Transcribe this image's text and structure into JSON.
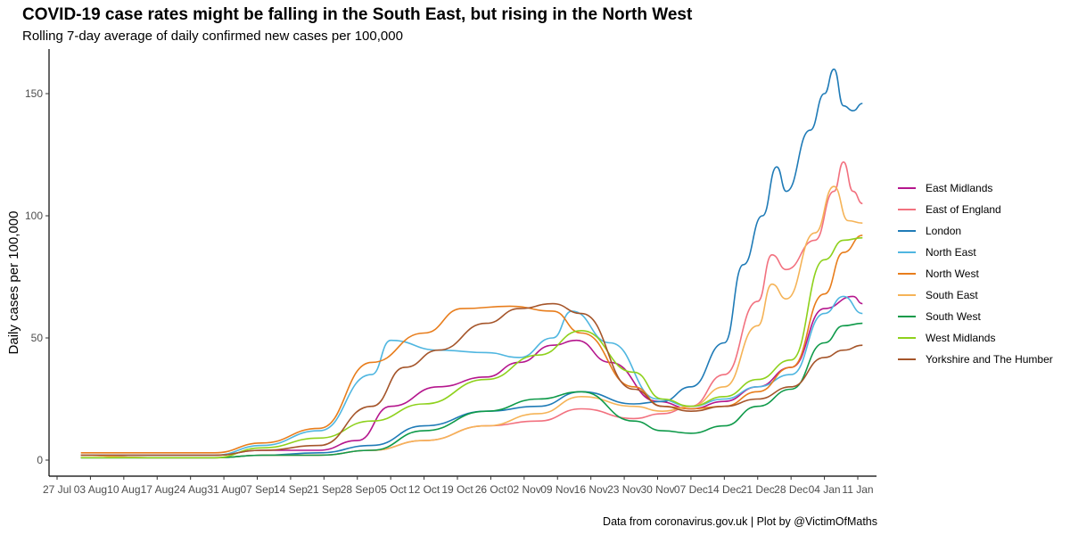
{
  "chart_data": {
    "type": "line",
    "title": "COVID-19 case rates might be falling in the South East, but rising in the North West",
    "subtitle": "Rolling 7-day average of daily confirmed new cases per 100,000",
    "caption": "Data from coronavirus.gov.uk | Plot by @VictimOfMaths",
    "xlabel": "",
    "ylabel": "Daily cases per 100,000",
    "ylim": [
      -8,
      168
    ],
    "yticks": [
      0,
      50,
      100,
      150
    ],
    "xlim": [
      "2020-07-27",
      "2021-01-11"
    ],
    "xticks": [
      {
        "date": "2020-07-27",
        "label": "27 Jul"
      },
      {
        "date": "2020-08-03",
        "label": "03 Aug"
      },
      {
        "date": "2020-08-10",
        "label": "10 Aug"
      },
      {
        "date": "2020-08-17",
        "label": "17 Aug"
      },
      {
        "date": "2020-08-24",
        "label": "24 Aug"
      },
      {
        "date": "2020-08-31",
        "label": "31 Aug"
      },
      {
        "date": "2020-09-07",
        "label": "07 Sep"
      },
      {
        "date": "2020-09-14",
        "label": "14 Sep"
      },
      {
        "date": "2020-09-21",
        "label": "21 Sep"
      },
      {
        "date": "2020-09-28",
        "label": "28 Sep"
      },
      {
        "date": "2020-10-05",
        "label": "05 Oct"
      },
      {
        "date": "2020-10-12",
        "label": "12 Oct"
      },
      {
        "date": "2020-10-19",
        "label": "19 Oct"
      },
      {
        "date": "2020-10-26",
        "label": "26 Oct"
      },
      {
        "date": "2020-11-02",
        "label": "02 Nov"
      },
      {
        "date": "2020-11-09",
        "label": "09 Nov"
      },
      {
        "date": "2020-11-16",
        "label": "16 Nov"
      },
      {
        "date": "2020-11-23",
        "label": "23 Nov"
      },
      {
        "date": "2020-11-30",
        "label": "30 Nov"
      },
      {
        "date": "2020-12-07",
        "label": "07 Dec"
      },
      {
        "date": "2020-12-14",
        "label": "14 Dec"
      },
      {
        "date": "2020-12-21",
        "label": "21 Dec"
      },
      {
        "date": "2020-12-28",
        "label": "28 Dec"
      },
      {
        "date": "2021-01-04",
        "label": "04 Jan"
      },
      {
        "date": "2021-01-11",
        "label": "11 Jan"
      }
    ],
    "grid": false,
    "legend_position": "right",
    "series": [
      {
        "name": "East Midlands",
        "color": "#b5168d",
        "x": [
          "2020-08-01",
          "2020-08-15",
          "2020-08-29",
          "2020-09-08",
          "2020-09-20",
          "2020-09-28",
          "2020-10-05",
          "2020-10-15",
          "2020-10-25",
          "2020-11-01",
          "2020-11-08",
          "2020-11-13",
          "2020-11-20",
          "2020-11-30",
          "2020-12-07",
          "2020-12-14",
          "2020-12-21",
          "2020-12-28",
          "2021-01-04",
          "2021-01-10",
          "2021-01-12"
        ],
        "y": [
          2,
          2,
          2,
          4,
          4,
          8,
          22,
          30,
          34,
          40,
          47,
          49,
          40,
          24,
          21,
          24,
          30,
          38,
          62,
          67,
          64
        ]
      },
      {
        "name": "East of England",
        "color": "#f2717f",
        "x": [
          "2020-08-01",
          "2020-08-15",
          "2020-08-29",
          "2020-09-08",
          "2020-09-20",
          "2020-10-01",
          "2020-10-12",
          "2020-10-25",
          "2020-11-05",
          "2020-11-14",
          "2020-11-25",
          "2020-12-01",
          "2020-12-07",
          "2020-12-14",
          "2020-12-21",
          "2020-12-24",
          "2020-12-27",
          "2021-01-02",
          "2021-01-06",
          "2021-01-08",
          "2021-01-10",
          "2021-01-12"
        ],
        "y": [
          2,
          1,
          1,
          2,
          2,
          4,
          8,
          14,
          16,
          21,
          17,
          19,
          22,
          35,
          65,
          84,
          78,
          90,
          110,
          122,
          110,
          105
        ]
      },
      {
        "name": "London",
        "color": "#1f7bb7",
        "x": [
          "2020-08-01",
          "2020-08-15",
          "2020-08-29",
          "2020-09-08",
          "2020-09-20",
          "2020-10-01",
          "2020-10-12",
          "2020-10-25",
          "2020-11-05",
          "2020-11-14",
          "2020-11-25",
          "2020-12-01",
          "2020-12-07",
          "2020-12-14",
          "2020-12-18",
          "2020-12-22",
          "2020-12-25",
          "2020-12-27",
          "2021-01-01",
          "2021-01-04",
          "2021-01-06",
          "2021-01-08",
          "2021-01-10",
          "2021-01-12"
        ],
        "y": [
          1,
          1,
          1,
          2,
          3,
          6,
          14,
          20,
          22,
          28,
          23,
          24,
          30,
          48,
          80,
          100,
          120,
          110,
          135,
          150,
          160,
          145,
          143,
          146
        ]
      },
      {
        "name": "North East",
        "color": "#4fb6e0",
        "x": [
          "2020-08-01",
          "2020-08-15",
          "2020-08-29",
          "2020-09-08",
          "2020-09-20",
          "2020-10-01",
          "2020-10-05",
          "2020-10-15",
          "2020-10-25",
          "2020-11-01",
          "2020-11-08",
          "2020-11-12",
          "2020-11-20",
          "2020-11-30",
          "2020-12-07",
          "2020-12-14",
          "2020-12-21",
          "2020-12-28",
          "2021-01-04",
          "2021-01-08",
          "2021-01-12"
        ],
        "y": [
          2,
          2,
          2,
          6,
          12,
          35,
          49,
          45,
          44,
          42,
          50,
          61,
          48,
          25,
          22,
          25,
          30,
          35,
          60,
          67,
          60
        ]
      },
      {
        "name": "North West",
        "color": "#e87d1c",
        "x": [
          "2020-08-01",
          "2020-08-15",
          "2020-08-29",
          "2020-09-08",
          "2020-09-20",
          "2020-10-01",
          "2020-10-12",
          "2020-10-20",
          "2020-10-30",
          "2020-11-08",
          "2020-11-14",
          "2020-11-25",
          "2020-12-01",
          "2020-12-07",
          "2020-12-14",
          "2020-12-21",
          "2020-12-28",
          "2021-01-04",
          "2021-01-08",
          "2021-01-12"
        ],
        "y": [
          3,
          3,
          3,
          7,
          13,
          40,
          52,
          62,
          63,
          61,
          52,
          30,
          22,
          21,
          22,
          28,
          38,
          68,
          85,
          92
        ]
      },
      {
        "name": "South East",
        "color": "#f5b357",
        "x": [
          "2020-08-01",
          "2020-08-15",
          "2020-08-29",
          "2020-09-08",
          "2020-09-20",
          "2020-10-01",
          "2020-10-12",
          "2020-10-25",
          "2020-11-05",
          "2020-11-14",
          "2020-11-25",
          "2020-12-01",
          "2020-12-07",
          "2020-12-14",
          "2020-12-21",
          "2020-12-24",
          "2020-12-27",
          "2021-01-02",
          "2021-01-06",
          "2021-01-09",
          "2021-01-12"
        ],
        "y": [
          2,
          1,
          1,
          2,
          2,
          4,
          8,
          14,
          19,
          26,
          22,
          20,
          22,
          30,
          55,
          72,
          66,
          93,
          112,
          98,
          97
        ]
      },
      {
        "name": "South West",
        "color": "#0f9a4a",
        "x": [
          "2020-08-01",
          "2020-08-15",
          "2020-08-29",
          "2020-09-08",
          "2020-09-20",
          "2020-10-01",
          "2020-10-12",
          "2020-10-25",
          "2020-11-05",
          "2020-11-14",
          "2020-11-25",
          "2020-12-01",
          "2020-12-07",
          "2020-12-14",
          "2020-12-21",
          "2020-12-28",
          "2021-01-04",
          "2021-01-08",
          "2021-01-12"
        ],
        "y": [
          1,
          1,
          1,
          2,
          2,
          4,
          12,
          20,
          25,
          28,
          16,
          12,
          11,
          14,
          22,
          29,
          48,
          55,
          56
        ]
      },
      {
        "name": "West Midlands",
        "color": "#8ed11c",
        "x": [
          "2020-08-01",
          "2020-08-15",
          "2020-08-29",
          "2020-09-08",
          "2020-09-20",
          "2020-10-01",
          "2020-10-12",
          "2020-10-25",
          "2020-11-05",
          "2020-11-14",
          "2020-11-25",
          "2020-12-01",
          "2020-12-07",
          "2020-12-14",
          "2020-12-21",
          "2020-12-28",
          "2021-01-04",
          "2021-01-08",
          "2021-01-12"
        ],
        "y": [
          1,
          1,
          1,
          5,
          9,
          16,
          23,
          33,
          43,
          53,
          36,
          25,
          22,
          26,
          33,
          41,
          82,
          90,
          91
        ]
      },
      {
        "name": "Yorkshire and The Humber",
        "color": "#a5552a",
        "x": [
          "2020-08-01",
          "2020-08-15",
          "2020-08-29",
          "2020-09-08",
          "2020-09-20",
          "2020-10-01",
          "2020-10-08",
          "2020-10-15",
          "2020-10-25",
          "2020-11-01",
          "2020-11-08",
          "2020-11-14",
          "2020-11-25",
          "2020-12-01",
          "2020-12-07",
          "2020-12-14",
          "2020-12-21",
          "2020-12-28",
          "2021-01-04",
          "2021-01-08",
          "2021-01-12"
        ],
        "y": [
          2,
          2,
          2,
          4,
          6,
          22,
          38,
          45,
          56,
          62,
          64,
          60,
          29,
          22,
          20,
          22,
          25,
          30,
          42,
          45,
          47
        ]
      }
    ]
  }
}
